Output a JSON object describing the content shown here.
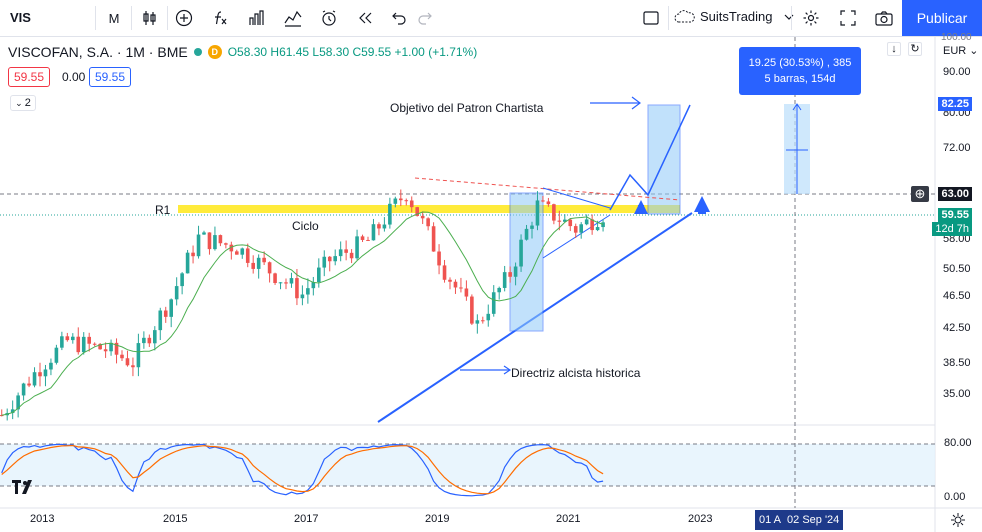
{
  "toolbar": {
    "symbol": "VIS",
    "interval": "M",
    "user": "SuitsTrading",
    "publish_label": "Publicar"
  },
  "legend": {
    "name": "VISCOFAN, S.A. · 1M · BME",
    "ohlc": "O58.30 H61.45 L58.30 C59.55 +1.00 (+1.71%)",
    "badge": "D",
    "sell_price": "59.55",
    "spread": "0.00",
    "buy_price": "59.55",
    "collapse_count": "2"
  },
  "price_axis": {
    "currency": "EUR",
    "top_tick": "100.00",
    "ticks": [
      "90.00",
      "80.00",
      "72.00",
      "58.00",
      "50.50",
      "46.50",
      "42.50",
      "38.50",
      "35.00"
    ],
    "tag_target": "82.25",
    "tag_level": "63.00",
    "tag_last": "59.55",
    "tag_countdown": "12d 7h"
  },
  "osc_axis": {
    "ticks": [
      "80.00",
      "0.00"
    ]
  },
  "time_axis": {
    "ticks": [
      "2013",
      "2015",
      "2017",
      "2019",
      "2021",
      "2023"
    ],
    "cursor_label": "01 A",
    "cursor_date": "02 Sep '24"
  },
  "annotations": {
    "r1": "R1",
    "cycle": "Ciclo",
    "target": "Objetivo del Patron Chartista",
    "trendline": "Directriz alcista historica"
  },
  "measure": {
    "line1": "19.25 (30.53%) , 385",
    "line2": "5 barras, 154d"
  },
  "chart_data": {
    "type": "candlestick",
    "y_axis_scale": "log",
    "ylim": [
      32,
      102
    ],
    "x_range": [
      "2012-01",
      "2024-09"
    ],
    "last_close": 59.55,
    "close_series": [
      {
        "date": "2012-06",
        "close": 33.0
      },
      {
        "date": "2013-01",
        "close": 38.0
      },
      {
        "date": "2013-06",
        "close": 41.0
      },
      {
        "date": "2014-01",
        "close": 40.0
      },
      {
        "date": "2014-06",
        "close": 38.5
      },
      {
        "date": "2015-01",
        "close": 46.5
      },
      {
        "date": "2015-06",
        "close": 55.5
      },
      {
        "date": "2016-01",
        "close": 54.0
      },
      {
        "date": "2016-06",
        "close": 51.0
      },
      {
        "date": "2017-01",
        "close": 47.0
      },
      {
        "date": "2017-06",
        "close": 52.0
      },
      {
        "date": "2018-01",
        "close": 55.0
      },
      {
        "date": "2018-08",
        "close": 63.5
      },
      {
        "date": "2019-03",
        "close": 50.5
      },
      {
        "date": "2019-09",
        "close": 43.0
      },
      {
        "date": "2020-03",
        "close": 50.0
      },
      {
        "date": "2020-08",
        "close": 61.0
      },
      {
        "date": "2021-03",
        "close": 57.0
      },
      {
        "date": "2021-08",
        "close": 59.55
      }
    ],
    "levels": {
      "R1": 60.5,
      "measure_from": 63.0,
      "measure_to": 82.25
    },
    "oscillator": {
      "bands": [
        20,
        80
      ]
    }
  }
}
